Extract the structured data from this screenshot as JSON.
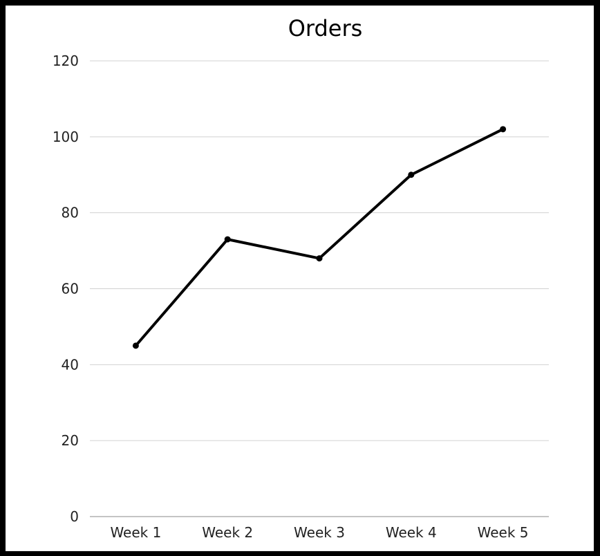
{
  "chart_data": {
    "type": "line",
    "title": "Orders",
    "xlabel": "",
    "ylabel": "",
    "categories": [
      "Week 1",
      "Week 2",
      "Week 3",
      "Week 4",
      "Week 5"
    ],
    "series": [
      {
        "values": [
          45,
          73,
          68,
          90,
          102
        ]
      }
    ],
    "ylim": [
      0,
      120
    ],
    "yticks": [
      "0",
      "20",
      "40",
      "60",
      "80",
      "100",
      "120"
    ],
    "grid": true,
    "legend": "none",
    "colors": {
      "line": "#000000",
      "grid": "#d0d0d0",
      "axis": "#888888",
      "frame": "#000000"
    }
  }
}
